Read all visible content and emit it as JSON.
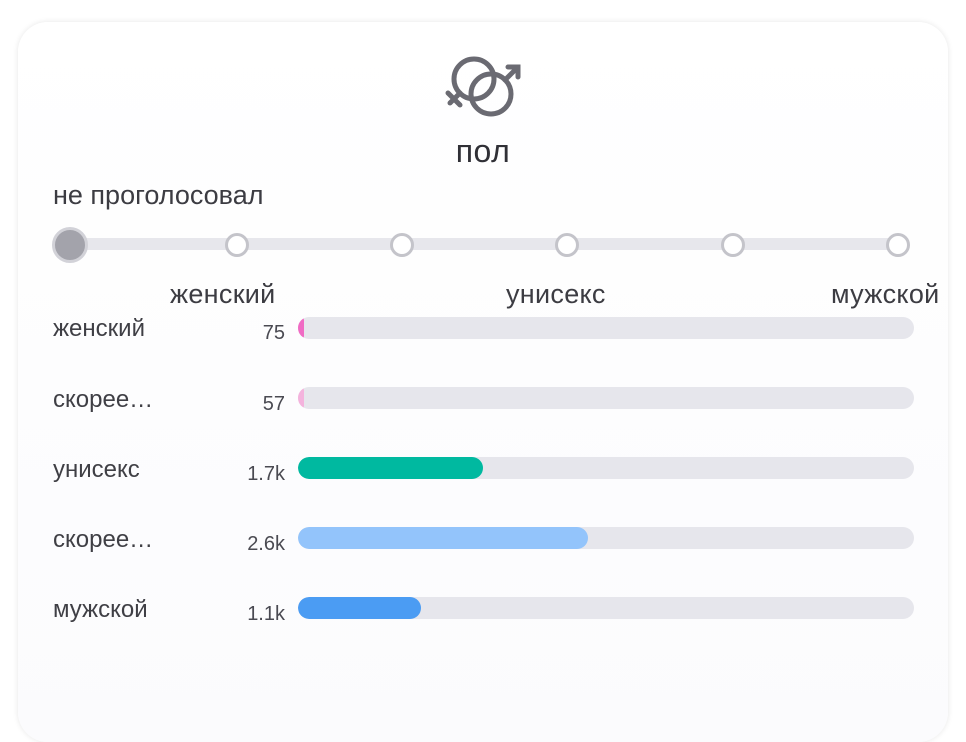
{
  "header": {
    "icon": "gender-symbols-icon",
    "title": "пол"
  },
  "scale": {
    "not_voted_label": "не проголосовал",
    "points": 6,
    "selected_index": 0,
    "labels": [
      "женский",
      "унисекс",
      "мужской"
    ]
  },
  "rows": [
    {
      "label": "женский",
      "count": "75",
      "fill_fraction": 0.01,
      "color": "#f06bc4"
    },
    {
      "label": "скорее…",
      "count": "57",
      "fill_fraction": 0.01,
      "color": "#f4b3dd"
    },
    {
      "label": "унисекс",
      "count": "1.7k",
      "fill_fraction": 0.3,
      "color": "#00b9a0"
    },
    {
      "label": "скорее…",
      "count": "2.6k",
      "fill_fraction": 0.47,
      "color": "#93c4fb"
    },
    {
      "label": "мужской",
      "count": "1.1k",
      "fill_fraction": 0.2,
      "color": "#4b9cf3"
    }
  ],
  "colors": {
    "track": "#e6e6ec",
    "text": "#3c3c42",
    "icon": "#6a6a72"
  }
}
